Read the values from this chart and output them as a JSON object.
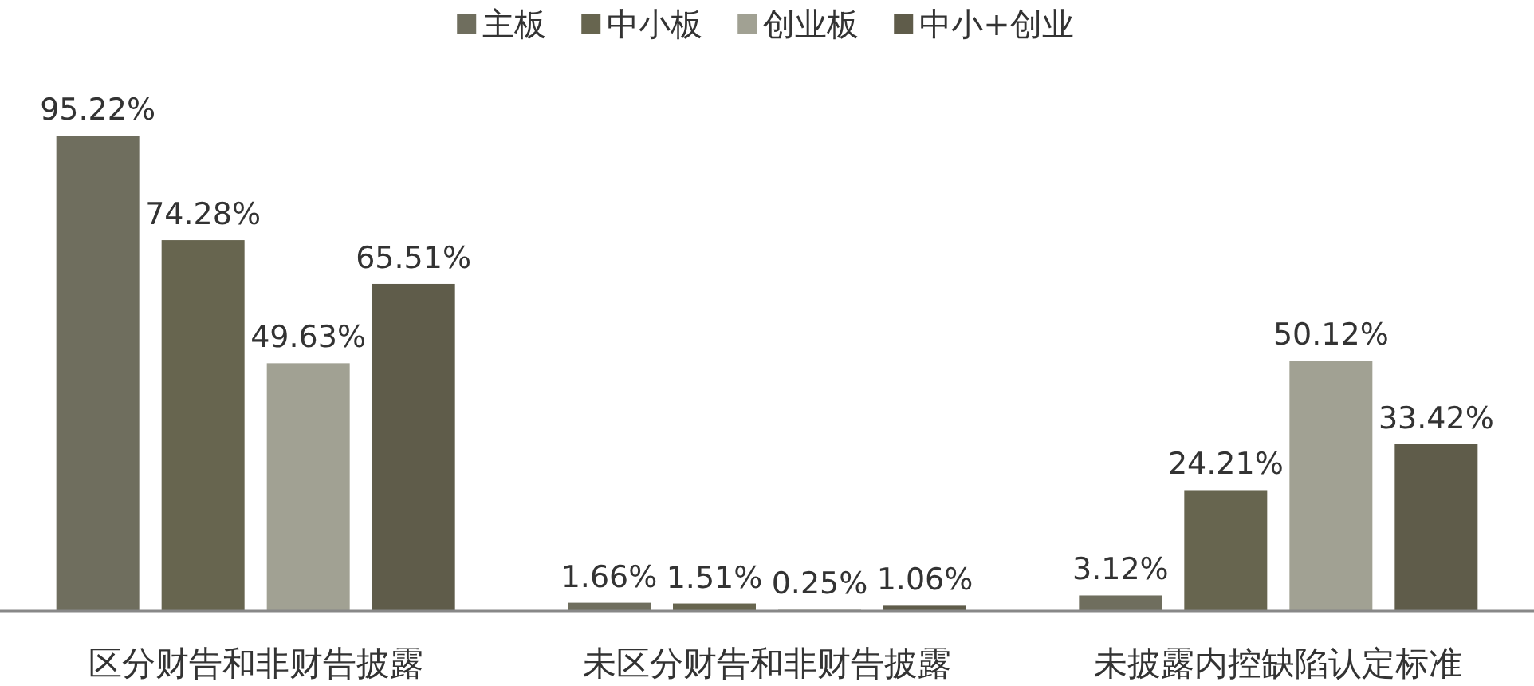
{
  "chart_data": {
    "type": "bar",
    "categories": [
      "区分财告和非财告披露",
      "未区分财告和非财告披露",
      "未披露内控缺陷认定标准"
    ],
    "series": [
      {
        "name": "主板",
        "color": "#6f6e5e",
        "values": [
          95.22,
          1.66,
          3.12
        ],
        "value_labels": [
          "95.22%",
          "1.66%",
          "3.12%"
        ]
      },
      {
        "name": "中小板",
        "color": "#67654f",
        "values": [
          74.28,
          1.51,
          24.21
        ],
        "value_labels": [
          "74.28%",
          "1.51%",
          "24.21%"
        ]
      },
      {
        "name": "创业板",
        "color": "#a1a193",
        "values": [
          49.63,
          0.25,
          50.12
        ],
        "value_labels": [
          "49.63%",
          "0.25%",
          "50.12%"
        ]
      },
      {
        "name": "中小+创业",
        "color": "#5f5c4a",
        "values": [
          65.51,
          1.06,
          33.42
        ],
        "value_labels": [
          "65.51%",
          "1.06%",
          "33.42%"
        ]
      }
    ],
    "legend": "top",
    "grid": false
  }
}
